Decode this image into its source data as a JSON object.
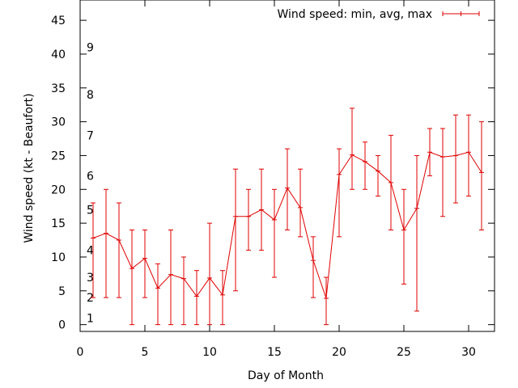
{
  "chart_data": {
    "type": "line",
    "xlabel": "Day of Month",
    "ylabel": "Wind speed (kt - Beaufort)",
    "xlim": [
      0,
      32
    ],
    "ylim": [
      -1,
      48
    ],
    "x_ticks": [
      0,
      5,
      10,
      15,
      20,
      25,
      30
    ],
    "y_ticks": [
      0,
      5,
      10,
      15,
      20,
      25,
      30,
      35,
      40,
      45
    ],
    "beaufort_labels": [
      {
        "label": "1",
        "y": 1
      },
      {
        "label": "2",
        "y": 4
      },
      {
        "label": "3",
        "y": 7
      },
      {
        "label": "4",
        "y": 11
      },
      {
        "label": "5",
        "y": 17
      },
      {
        "label": "6",
        "y": 22
      },
      {
        "label": "7",
        "y": 28
      },
      {
        "label": "8",
        "y": 34
      },
      {
        "label": "9",
        "y": 41
      }
    ],
    "grid": false,
    "legend_position": "top-right",
    "series": [
      {
        "name": "Wind speed: min, avg, max",
        "color": "#e00000",
        "x": [
          1,
          2,
          3,
          4,
          5,
          6,
          7,
          8,
          9,
          10,
          11,
          12,
          13,
          14,
          15,
          16,
          17,
          18,
          19,
          20,
          21,
          22,
          23,
          24,
          25,
          26,
          27,
          28,
          29,
          30,
          31
        ],
        "avg": [
          12.8,
          13.5,
          12.5,
          8.3,
          9.8,
          5.4,
          7.4,
          6.8,
          4.2,
          6.9,
          4.4,
          16,
          16,
          17,
          15.5,
          20.2,
          17.3,
          9.5,
          3.9,
          22.2,
          25.1,
          24.1,
          22.7,
          21,
          14,
          17.2,
          25.5,
          24.8,
          25,
          25.5,
          22.5
        ],
        "min": [
          4,
          4,
          4,
          0,
          4,
          0,
          0,
          0,
          0,
          0,
          0,
          5,
          11,
          11,
          7,
          14,
          13,
          4,
          0,
          13,
          20,
          20,
          19,
          14,
          6,
          2,
          22,
          16,
          18,
          19,
          14
        ],
        "max": [
          18,
          20,
          18,
          14,
          14,
          9,
          14,
          10,
          8,
          15,
          8,
          23,
          20,
          23,
          20,
          26,
          23,
          13,
          7,
          26,
          32,
          27,
          25,
          28,
          20,
          25,
          29,
          29,
          31,
          31,
          30
        ]
      }
    ]
  }
}
